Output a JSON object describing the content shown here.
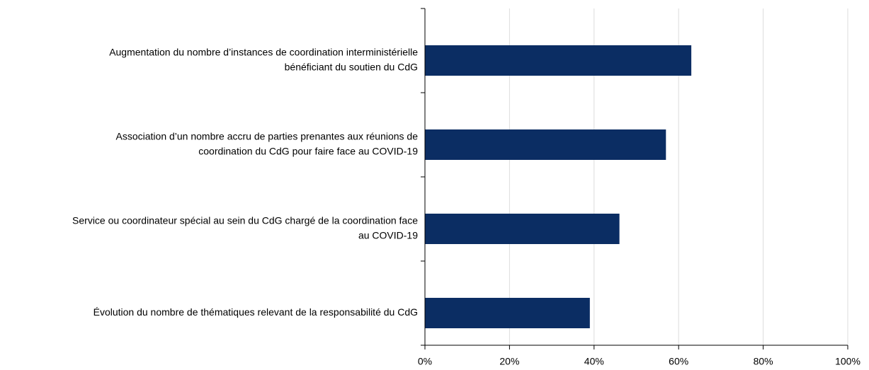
{
  "chart_data": {
    "type": "bar",
    "orientation": "horizontal",
    "categories": [
      [
        "Augmentation du nombre d’instances de coordination interministérielle",
        "bénéficiant du soutien du CdG"
      ],
      [
        "Association d’un nombre accru de parties prenantes aux réunions de",
        "coordination du CdG pour faire face au COVID-19"
      ],
      [
        "Service ou coordinateur spécial au sein du CdG chargé de la coordination face",
        "au COVID-19"
      ],
      [
        "Évolution du nombre de thématiques relevant de la responsabilité du CdG"
      ]
    ],
    "values": [
      63,
      57,
      46,
      39
    ],
    "color": "#0b2d63",
    "xlim": [
      0,
      100
    ],
    "xticks": [
      {
        "value": 0,
        "label": "0%"
      },
      {
        "value": 20,
        "label": "20%"
      },
      {
        "value": 40,
        "label": "40%"
      },
      {
        "value": 60,
        "label": "60%"
      },
      {
        "value": 80,
        "label": "80%"
      },
      {
        "value": 100,
        "label": "100%"
      }
    ],
    "grid": true
  }
}
